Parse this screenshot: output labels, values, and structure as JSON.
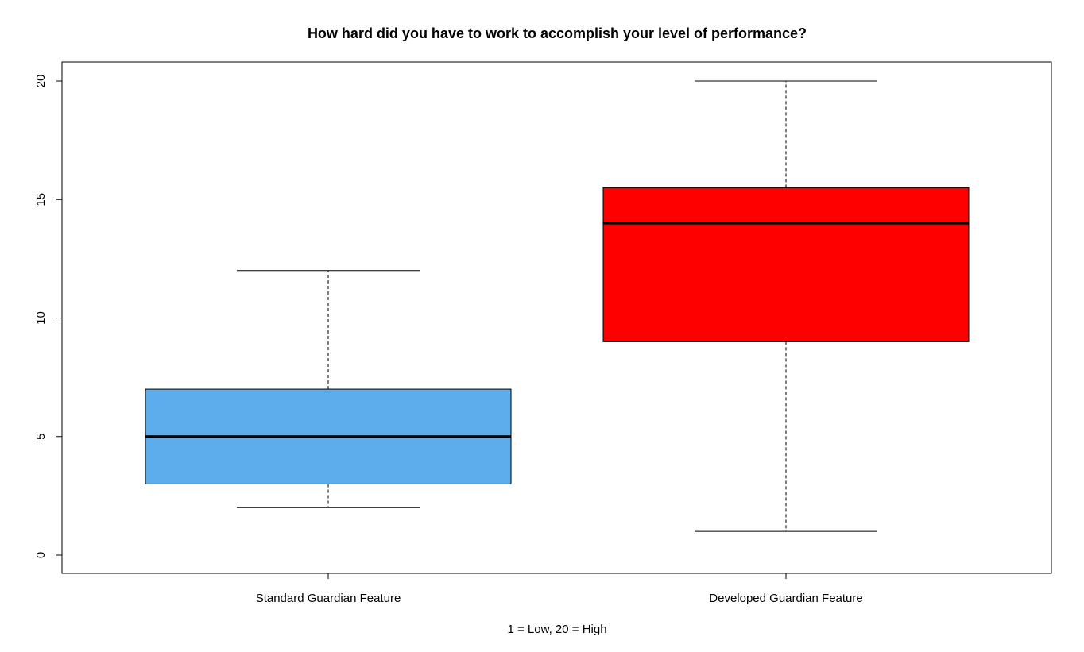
{
  "chart_data": {
    "type": "box",
    "title": "How hard did you have to work to accomplish your level of performance?",
    "xlabel": "1 = Low, 20 = High",
    "ylabel": "",
    "ylim": [
      0,
      20
    ],
    "y_ticks": [
      0,
      5,
      10,
      15,
      20
    ],
    "grid": false,
    "categories": [
      "Standard Guardian Feature",
      "Developed Guardian Feature"
    ],
    "boxes": [
      {
        "category": "Standard Guardian Feature",
        "min": 2,
        "q1": 3,
        "median": 5,
        "q3": 7,
        "max": 12,
        "color": "#5DADEC"
      },
      {
        "category": "Developed Guardian Feature",
        "min": 1,
        "q1": 9,
        "median": 14,
        "q3": 15.5,
        "max": 20,
        "color": "#FF0000"
      }
    ]
  }
}
